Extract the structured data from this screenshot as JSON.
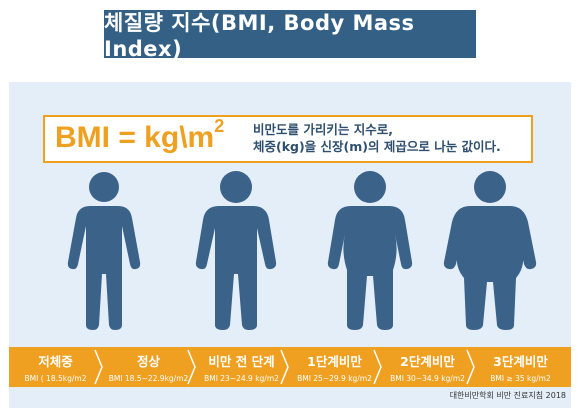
{
  "title": "체질량 지수(BMI, Body Mass Index)",
  "formula": {
    "main": "BMI = kg\\m",
    "exponent": "2",
    "description_line1": "비만도를 가리키는 지수로,",
    "description_line2": "체중(kg)을 신장(m)의 제곱으로 나눈 값이다."
  },
  "categories": [
    {
      "name": "저체중",
      "range": "BMI ( 18.5kg/m2"
    },
    {
      "name": "정상",
      "range": "BMI 18.5~22.9kg/m2"
    },
    {
      "name": "비만 전 단계",
      "range": "BMI 23~24.9 kg/m2"
    },
    {
      "name": "1단계비만",
      "range": "BMI 25~29.9 kg/m2"
    },
    {
      "name": "2단계비만",
      "range": "BMI 30~34.9 kg/m2"
    },
    {
      "name": "3단계비만",
      "range": "BMI ≥ 35 kg/m2"
    }
  ],
  "source": "대한비만학회 비만 진료지침 2018",
  "colors": {
    "title_bg": "#356086",
    "panel_bg": "#e3eef8",
    "accent": "#f0a020",
    "figure": "#3b6289"
  },
  "icons": [
    "person-underweight-icon",
    "person-normal-icon",
    "person-preobese-icon",
    "person-obese1-icon",
    "person-obese2-icon"
  ]
}
